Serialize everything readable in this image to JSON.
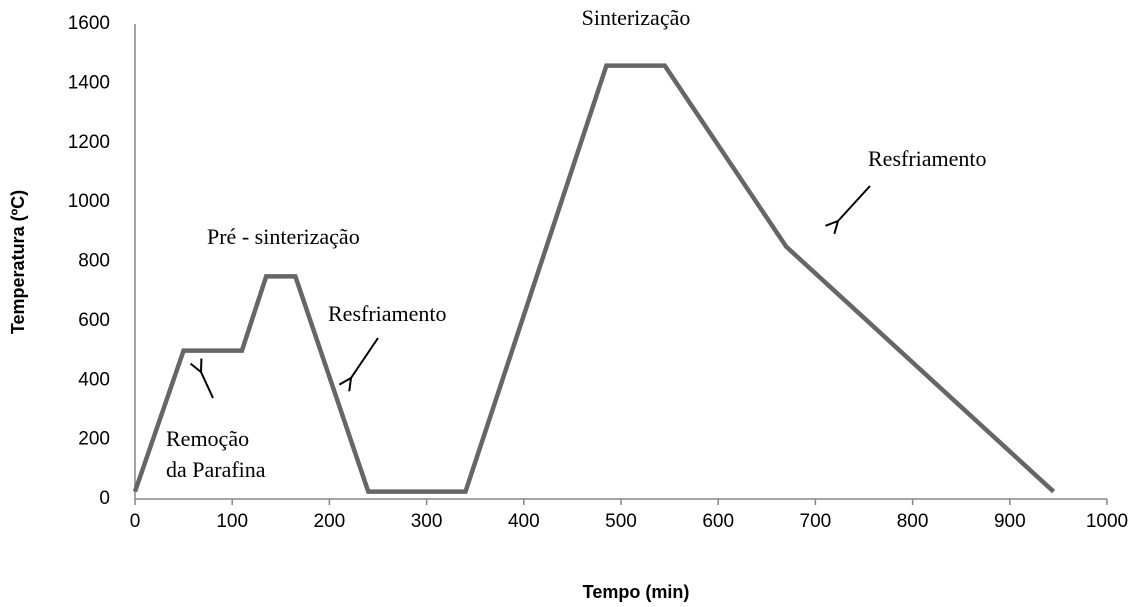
{
  "chart_data": {
    "type": "line",
    "xlabel": "Tempo (min)",
    "ylabel": "Temperatura (ºC)",
    "x": [
      0,
      50,
      110,
      135,
      165,
      240,
      340,
      485,
      545,
      670,
      945
    ],
    "series": [
      {
        "color": "#666666",
        "values": [
          25,
          500,
          500,
          750,
          750,
          25,
          25,
          1460,
          1460,
          850,
          25
        ]
      }
    ],
    "xlim": [
      0,
      1000
    ],
    "xticks": [
      0,
      100,
      200,
      300,
      400,
      500,
      600,
      700,
      800,
      900,
      1000
    ],
    "ylim": [
      0,
      1600
    ],
    "yticks": [
      0,
      200,
      400,
      600,
      800,
      1000,
      1200,
      1400,
      1600
    ],
    "grid": false,
    "annotations": [
      [
        "Remoção",
        "da Parafina"
      ],
      [
        "Pré - sinterização"
      ],
      [
        "Resfriamento"
      ],
      [
        "Sinterização"
      ],
      [
        "Resfriamento"
      ]
    ]
  }
}
